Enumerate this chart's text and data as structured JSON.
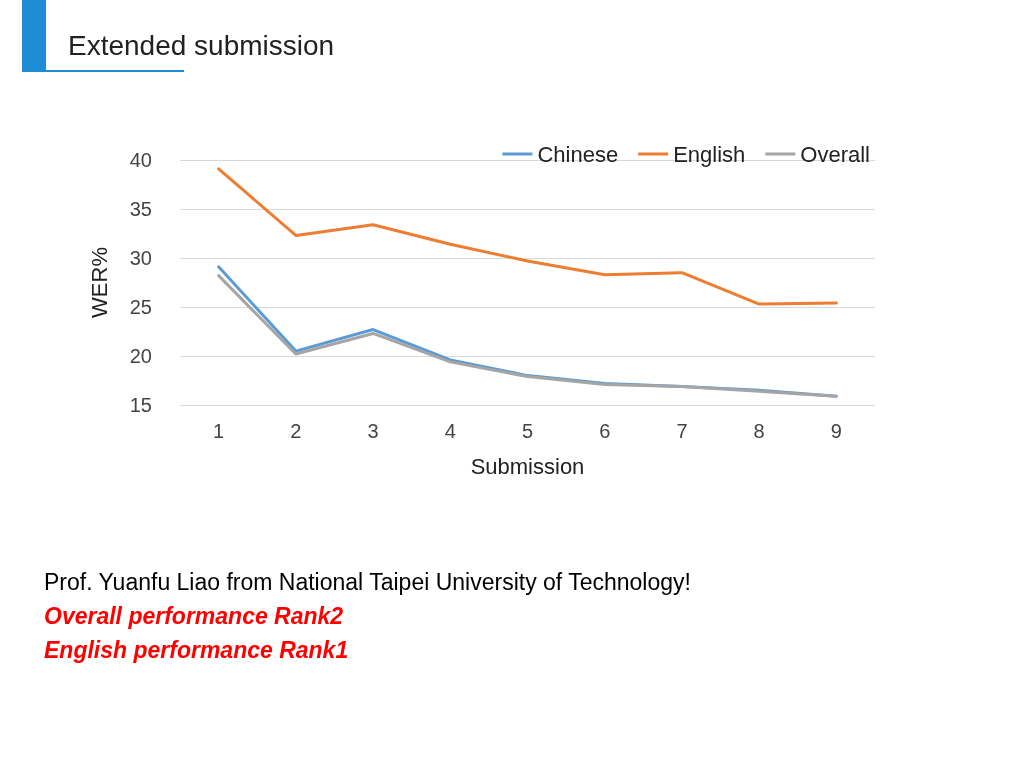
{
  "chart_data": {
    "type": "line",
    "title": "Extended submission",
    "xlabel": "Submission",
    "ylabel": "WER%",
    "categories": [
      "1",
      "2",
      "3",
      "4",
      "5",
      "6",
      "7",
      "8",
      "9"
    ],
    "series": [
      {
        "name": "Chinese",
        "color": "#5b9bd5",
        "values": [
          29.1,
          20.5,
          22.7,
          19.6,
          18.0,
          17.2,
          16.9,
          16.5,
          15.9
        ]
      },
      {
        "name": "English",
        "color": "#ed7d31",
        "values": [
          39.1,
          32.3,
          33.4,
          31.4,
          29.7,
          28.3,
          28.5,
          25.3,
          25.4
        ]
      },
      {
        "name": "Overall",
        "color": "#a5a5a5",
        "values": [
          28.2,
          20.2,
          22.3,
          19.4,
          17.9,
          17.1,
          16.9,
          16.4,
          15.9
        ]
      }
    ],
    "ylim": [
      15,
      40
    ],
    "yticks": [
      15,
      20,
      25,
      30,
      35,
      40
    ],
    "grid": "y",
    "legend": "top right",
    "marker": "none",
    "line_style": "solid",
    "annotations": [
      "Prof. Yuanfu Liao from National Taipei University of Technology!",
      "Overall performance Rank2",
      "English performance Rank1"
    ]
  }
}
